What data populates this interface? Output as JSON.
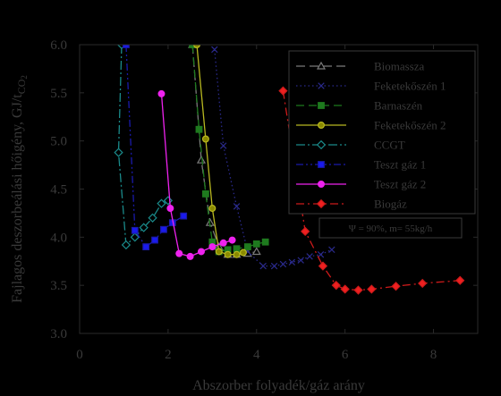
{
  "chart_data": {
    "type": "line",
    "xlabel": "Abszorber folyadék/gáz arány",
    "ylabel": "Fajlagos deszorbeálási hőigény, GJ/tCO2",
    "ylabel_parts": {
      "main": "Fajlagos deszorbeálási hőigény, GJ/t",
      "sub_letter": "CO",
      "sub_digit": "2"
    },
    "xlim": [
      0,
      9
    ],
    "ylim": [
      3.0,
      6.0
    ],
    "x_ticks": [
      0,
      2,
      4,
      6,
      8
    ],
    "y_ticks": [
      3.0,
      3.5,
      4.0,
      4.5,
      5.0,
      5.5,
      6.0
    ],
    "x_tick_labels": [
      "0",
      "2",
      "4",
      "6",
      "8"
    ],
    "y_tick_labels": [
      "3.0",
      "3.5",
      "4.0",
      "4.5",
      "5.0",
      "5.5",
      "6.0"
    ],
    "grid": false,
    "legend_position": "top-right",
    "annotation": "Ψ = 90%, m= 55kg/h",
    "series": [
      {
        "name": "Biomassza",
        "color": "#7a7a7a",
        "dash": "10,5",
        "marker": "triangle",
        "marker_fill": "none",
        "x": [
          2.55,
          2.75,
          2.95,
          3.15,
          3.35,
          3.55,
          3.8,
          4.0
        ],
        "y": [
          6.0,
          4.8,
          4.15,
          3.9,
          3.82,
          3.82,
          3.83,
          3.85
        ]
      },
      {
        "name": "Feketekőszén 1",
        "color": "#2a2a8c",
        "dash": "1.5,3",
        "marker": "x",
        "marker_fill": "none",
        "x": [
          3.05,
          3.25,
          3.55,
          3.8,
          4.15,
          4.4,
          4.6,
          4.8,
          5.0,
          5.2,
          5.45,
          5.7
        ],
        "y": [
          5.95,
          4.95,
          4.32,
          3.85,
          3.7,
          3.7,
          3.72,
          3.74,
          3.76,
          3.8,
          3.82,
          3.87
        ]
      },
      {
        "name": "Barnaszén",
        "color": "#1e7a1e",
        "dash": "9,5",
        "marker": "square",
        "marker_fill": "#1e7a1e",
        "x": [
          2.55,
          2.7,
          2.85,
          3.0,
          3.15,
          3.35,
          3.55,
          3.8,
          4.0,
          4.2
        ],
        "y": [
          6.0,
          5.12,
          4.45,
          3.95,
          3.85,
          3.87,
          3.88,
          3.9,
          3.93,
          3.95
        ]
      },
      {
        "name": "Feketekőszén 2",
        "color": "#b8b820",
        "dash": "",
        "marker": "circle",
        "marker_fill": "#8a8a00",
        "x": [
          2.65,
          2.85,
          3.0,
          3.15,
          3.35,
          3.55,
          3.7
        ],
        "y": [
          6.0,
          5.02,
          4.3,
          3.85,
          3.82,
          3.82,
          3.84
        ]
      },
      {
        "name": "CCGT",
        "color": "#1a8a8a",
        "dash": "10,3,2,3",
        "marker": "diamond",
        "marker_fill": "none",
        "x": [
          0.95,
          0.88,
          1.05,
          1.25,
          1.45,
          1.65,
          1.85,
          2.0
        ],
        "y": [
          6.0,
          4.88,
          3.92,
          4.0,
          4.1,
          4.2,
          4.35,
          4.38
        ]
      },
      {
        "name": "Teszt gáz 1",
        "color": "#1a1aaa",
        "dash": "8,3,2,3,2,3",
        "marker": "square",
        "marker_fill": "#1a1aee",
        "x": [
          1.05,
          1.25,
          1.5,
          1.7,
          1.9,
          2.1,
          2.35
        ],
        "y": [
          6.0,
          4.07,
          3.9,
          3.97,
          4.08,
          4.15,
          4.22
        ]
      },
      {
        "name": "Teszt gáz 2",
        "color": "#ee22ee",
        "dash": "",
        "marker": "circle",
        "marker_fill": "#ee22ee",
        "x": [
          1.85,
          2.05,
          2.25,
          2.5,
          2.75,
          3.0,
          3.25,
          3.45
        ],
        "y": [
          5.49,
          4.3,
          3.83,
          3.8,
          3.85,
          3.9,
          3.94,
          3.97
        ]
      },
      {
        "name": "Biogáz",
        "color": "#cc1a1a",
        "dash": "9,4,2,4",
        "marker": "diamond",
        "marker_fill": "#ee2020",
        "x": [
          4.6,
          5.1,
          5.5,
          5.8,
          6.0,
          6.3,
          6.6,
          7.15,
          7.75,
          8.6
        ],
        "y": [
          5.52,
          4.06,
          3.7,
          3.5,
          3.46,
          3.45,
          3.46,
          3.49,
          3.52,
          3.55
        ]
      }
    ]
  }
}
